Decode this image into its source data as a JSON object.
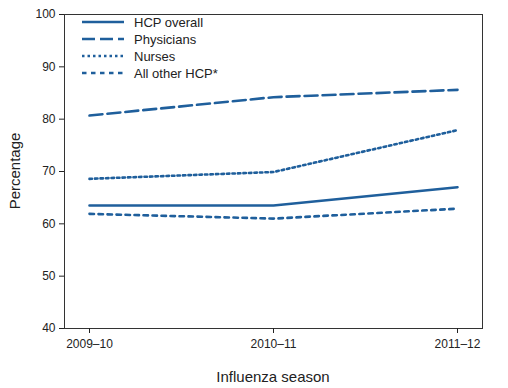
{
  "chart_data": {
    "type": "line",
    "x_label": "Influenza season",
    "y_label": "Percentage",
    "categories": [
      "2009–10",
      "2010–11",
      "2011–12"
    ],
    "series": [
      {
        "name": "HCP overall",
        "color": "#1f5f9c",
        "line_style": "solid",
        "values": [
          63.5,
          63.5,
          67.0
        ]
      },
      {
        "name": "Physicians",
        "color": "#1f5f9c",
        "line_style": "long-dash",
        "values": [
          80.7,
          84.2,
          85.6
        ]
      },
      {
        "name": "Nurses",
        "color": "#1f5f9c",
        "line_style": "dotted",
        "values": [
          68.6,
          69.9,
          77.9
        ]
      },
      {
        "name": "All other HCP*",
        "color": "#1f5f9c",
        "line_style": "dashed",
        "values": [
          61.9,
          61.0,
          62.9
        ]
      }
    ],
    "ylim": [
      40,
      100
    ],
    "yticks": [
      40,
      50,
      60,
      70,
      80,
      90,
      100
    ],
    "grid": false,
    "legend": "upper left"
  }
}
